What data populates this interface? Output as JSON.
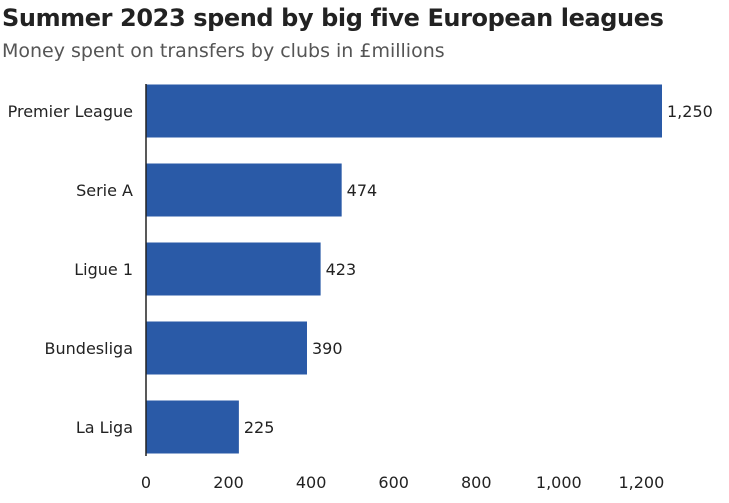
{
  "chart_data": {
    "type": "bar",
    "orientation": "horizontal",
    "title": "Summer 2023 spend by big five European leagues",
    "subtitle": "Money spent on transfers by clubs in £millions",
    "categories": [
      "Premier League",
      "Serie A",
      "Ligue 1",
      "Bundesliga",
      "La Liga"
    ],
    "values": [
      1250,
      474,
      423,
      390,
      225
    ],
    "value_labels": [
      "1,250",
      "474",
      "423",
      "390",
      "225"
    ],
    "xlabel": "",
    "ylabel": "",
    "xlim": [
      0,
      1250
    ],
    "x_ticks": [
      0,
      200,
      400,
      600,
      800,
      1000,
      1200
    ],
    "x_tick_labels": [
      "0",
      "200",
      "400",
      "600",
      "800",
      "1,000",
      "1,200"
    ],
    "grid": false,
    "legend": "none",
    "bar_color": "#2a5aa7"
  }
}
